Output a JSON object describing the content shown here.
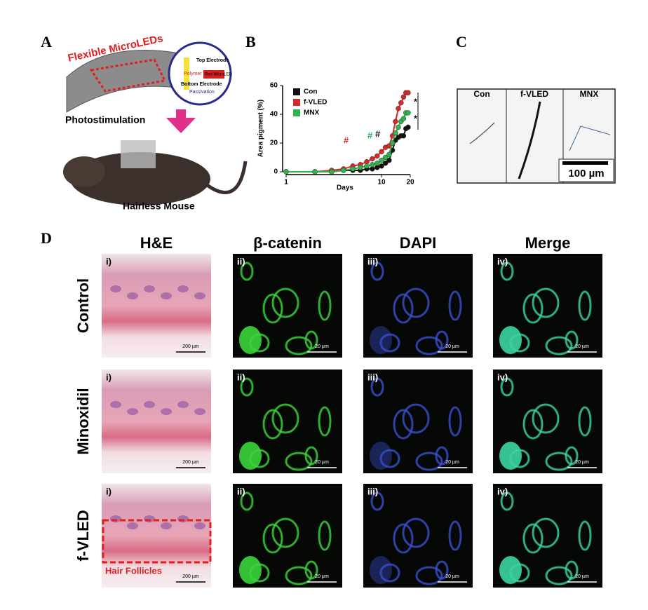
{
  "panel_labels": [
    "A",
    "B",
    "C",
    "D"
  ],
  "panel_a": {
    "title": "Flexible MicroLEDs",
    "inset": [
      "Top Electrode",
      "Polymer",
      "Red MicroLED",
      "Bottom Electrode",
      "Passivation"
    ],
    "step": "Photostimulation",
    "subject": "Hairless Mouse"
  },
  "chart_data": {
    "type": "line",
    "x_label": "Days",
    "y_label": "Area pigment (%)",
    "x_scale": "log",
    "x": [
      1,
      2,
      3,
      4,
      5,
      6,
      7,
      8,
      9,
      10,
      11,
      12,
      13,
      14,
      15,
      16,
      17,
      18,
      19
    ],
    "xlim": [
      1,
      20
    ],
    "xticks": [
      1,
      10,
      20
    ],
    "ylim": [
      0,
      60
    ],
    "yticks": [
      0,
      20,
      40,
      60
    ],
    "legend": "top-left",
    "series": [
      {
        "name": "Con",
        "color": "#111111",
        "values": [
          0,
          0,
          0,
          1,
          1,
          1,
          2,
          2,
          3,
          4,
          6,
          8,
          15,
          22,
          24,
          25,
          25,
          30,
          31
        ]
      },
      {
        "name": "f-VLED",
        "color": "#d42a2a",
        "values": [
          0,
          0,
          1,
          2,
          4,
          5,
          7,
          9,
          11,
          14,
          17,
          18,
          25,
          35,
          44,
          48,
          52,
          55,
          55
        ]
      },
      {
        "name": "MNX",
        "color": "#2fb34a",
        "values": [
          0,
          0,
          0,
          1,
          2,
          3,
          4,
          5,
          6,
          8,
          10,
          12,
          20,
          27,
          31,
          35,
          37,
          41,
          41
        ]
      }
    ],
    "annotations": [
      "#",
      "#",
      "#",
      "*",
      "*"
    ]
  },
  "panel_c": {
    "labels": [
      "Con",
      "f-VLED",
      "MNX"
    ],
    "scale_bar": "100 µm"
  },
  "panel_d": {
    "columns": [
      "H&E",
      "β-catenin",
      "DAPI",
      "Merge"
    ],
    "rows": [
      "Control",
      "Minoxidil",
      "f-VLED"
    ],
    "tile_labels": [
      "i)",
      "ii)",
      "iii)",
      "iv)"
    ],
    "scale_he": "200 µm",
    "scale_if": "20 µm",
    "region": "Hair Follicles"
  }
}
